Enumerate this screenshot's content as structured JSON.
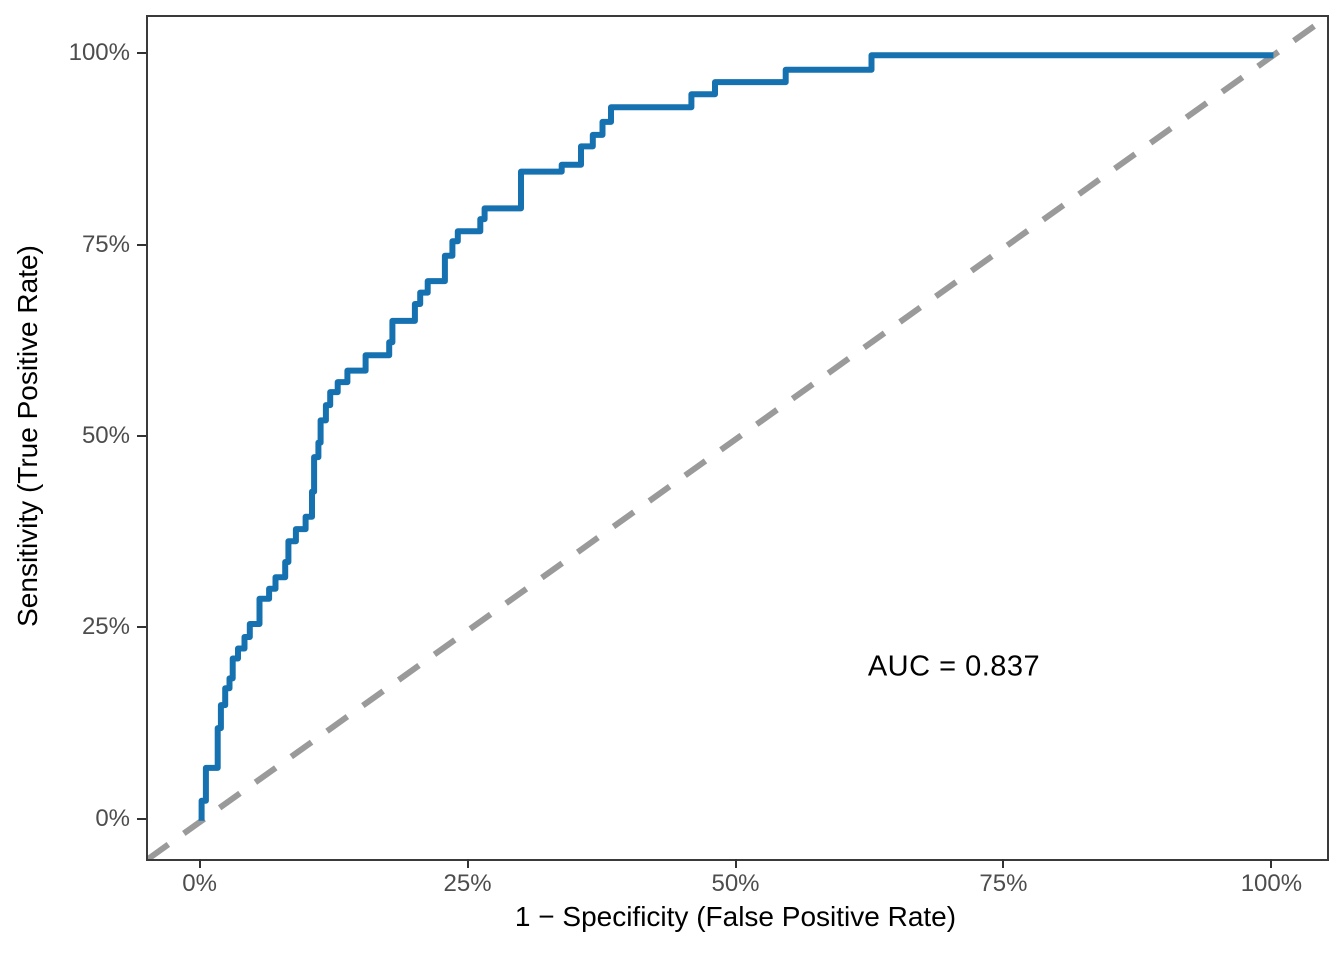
{
  "colors": {
    "curve": "#1671b1",
    "diagonal": "#9a9a9a",
    "axis_line": "#3a3a3a",
    "tick_text": "#4d4d4d",
    "title_text": "#000000",
    "background": "#ffffff"
  },
  "chart_data": {
    "type": "line",
    "subtype": "roc-step-curve",
    "title": "",
    "xlabel": "1 − Specificity (False Positive Rate)",
    "ylabel": "Sensitivity (True Positive Rate)",
    "xlim": [
      -5,
      105
    ],
    "ylim": [
      -5,
      105
    ],
    "grid": false,
    "legend": "none",
    "auc": 0.837,
    "annotation": {
      "text": "AUC = 0.837",
      "x": 70.2,
      "y": 20.1
    },
    "x_ticks": {
      "values": [
        0,
        25,
        50,
        75,
        100
      ],
      "labels": [
        "0%",
        "25%",
        "50%",
        "75%",
        "100%"
      ]
    },
    "y_ticks": {
      "values": [
        0,
        25,
        50,
        75,
        100
      ],
      "labels": [
        "0%",
        "25%",
        "50%",
        "75%",
        "100%"
      ]
    },
    "diagonal_reference": {
      "slope": 1,
      "intercept": 0,
      "style": "dashed"
    },
    "series": [
      {
        "name": "ROC curve",
        "units": "percent",
        "points": [
          [
            0,
            0
          ],
          [
            0,
            2.6
          ],
          [
            0.4,
            2.6
          ],
          [
            0.4,
            6.9
          ],
          [
            1.5,
            6.9
          ],
          [
            1.5,
            12.1
          ],
          [
            1.8,
            12.1
          ],
          [
            1.8,
            15.1
          ],
          [
            2.2,
            15.1
          ],
          [
            2.2,
            17.3
          ],
          [
            2.6,
            17.3
          ],
          [
            2.6,
            18.6
          ],
          [
            2.9,
            18.6
          ],
          [
            2.9,
            21.2
          ],
          [
            3.4,
            21.2
          ],
          [
            3.4,
            22.5
          ],
          [
            4,
            22.5
          ],
          [
            4,
            24
          ],
          [
            4.5,
            24
          ],
          [
            4.5,
            25.7
          ],
          [
            5.4,
            25.7
          ],
          [
            5.4,
            29
          ],
          [
            6.3,
            29
          ],
          [
            6.3,
            30.3
          ],
          [
            6.9,
            30.3
          ],
          [
            6.9,
            31.8
          ],
          [
            7.8,
            31.8
          ],
          [
            7.8,
            33.8
          ],
          [
            8.1,
            33.8
          ],
          [
            8.1,
            36.5
          ],
          [
            8.8,
            36.5
          ],
          [
            8.8,
            38.1
          ],
          [
            9.7,
            38.1
          ],
          [
            9.7,
            39.7
          ],
          [
            10.3,
            39.7
          ],
          [
            10.3,
            43
          ],
          [
            10.5,
            43
          ],
          [
            10.5,
            47.5
          ],
          [
            10.9,
            47.5
          ],
          [
            10.9,
            49.4
          ],
          [
            11.1,
            49.4
          ],
          [
            11.1,
            52.3
          ],
          [
            11.6,
            52.3
          ],
          [
            11.6,
            54.3
          ],
          [
            12,
            54.3
          ],
          [
            12,
            56
          ],
          [
            12.7,
            56
          ],
          [
            12.7,
            57.3
          ],
          [
            13.6,
            57.3
          ],
          [
            13.6,
            58.8
          ],
          [
            15.3,
            58.8
          ],
          [
            15.3,
            60.8
          ],
          [
            17.5,
            60.8
          ],
          [
            17.5,
            62.5
          ],
          [
            17.8,
            62.5
          ],
          [
            17.8,
            65.3
          ],
          [
            19.9,
            65.3
          ],
          [
            19.9,
            67.5
          ],
          [
            20.4,
            67.5
          ],
          [
            20.4,
            69
          ],
          [
            21.1,
            69
          ],
          [
            21.1,
            70.5
          ],
          [
            22.7,
            70.5
          ],
          [
            22.7,
            73.8
          ],
          [
            23.4,
            73.8
          ],
          [
            23.4,
            75.7
          ],
          [
            23.9,
            75.7
          ],
          [
            23.9,
            77
          ],
          [
            26,
            77
          ],
          [
            26,
            78.6
          ],
          [
            26.4,
            78.6
          ],
          [
            26.4,
            80
          ],
          [
            29.8,
            80
          ],
          [
            29.8,
            84.8
          ],
          [
            33.6,
            84.8
          ],
          [
            33.6,
            85.7
          ],
          [
            35.4,
            85.7
          ],
          [
            35.4,
            88.1
          ],
          [
            36.5,
            88.1
          ],
          [
            36.5,
            89.6
          ],
          [
            37.4,
            89.6
          ],
          [
            37.4,
            91.3
          ],
          [
            38.2,
            91.3
          ],
          [
            38.2,
            93.2
          ],
          [
            45.7,
            93.2
          ],
          [
            45.7,
            94.9
          ],
          [
            47.9,
            94.9
          ],
          [
            47.9,
            96.5
          ],
          [
            54.5,
            96.5
          ],
          [
            54.5,
            98.1
          ],
          [
            62.5,
            98.1
          ],
          [
            62.5,
            100
          ],
          [
            100,
            100
          ]
        ]
      }
    ]
  }
}
